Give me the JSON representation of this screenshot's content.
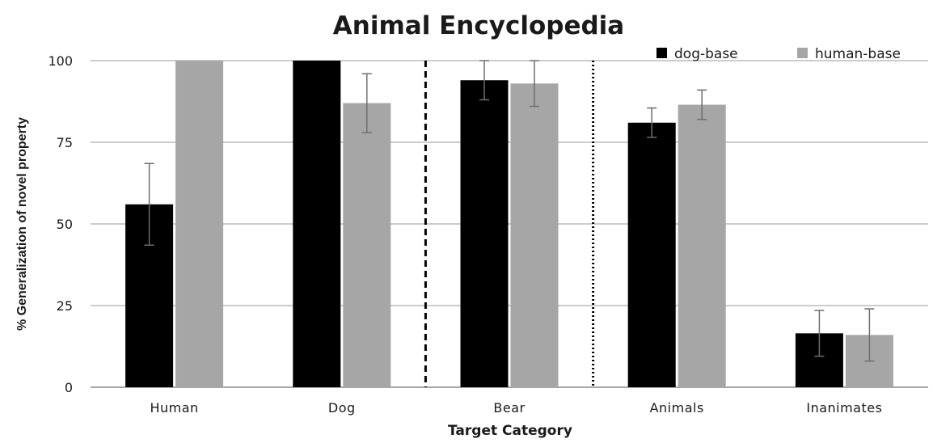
{
  "chart_data": {
    "type": "bar",
    "title": "Animal Encyclopedia",
    "xlabel": "Target Category",
    "ylabel": "% Generalization of novel property",
    "categories": [
      "Human",
      "Dog",
      "Bear",
      "Animals",
      "Inanimates"
    ],
    "series": [
      {
        "name": "dog-base",
        "color": "#000000",
        "values": [
          56,
          100,
          94,
          81,
          16.5
        ],
        "error": [
          12.5,
          0,
          6,
          4.5,
          7
        ]
      },
      {
        "name": "human-base",
        "color": "#a6a6a6",
        "values": [
          100,
          87,
          93,
          86.5,
          16
        ],
        "error": [
          0,
          9,
          7,
          4.5,
          8
        ]
      }
    ],
    "ylim": [
      0,
      100
    ],
    "yticks": [
      0,
      25,
      50,
      75,
      100
    ],
    "grid": true,
    "legend_position": "top-right",
    "separators": [
      {
        "between": [
          "Dog",
          "Bear"
        ],
        "style": "dashed"
      },
      {
        "between": [
          "Bear",
          "Animals"
        ],
        "style": "dotted"
      }
    ]
  }
}
